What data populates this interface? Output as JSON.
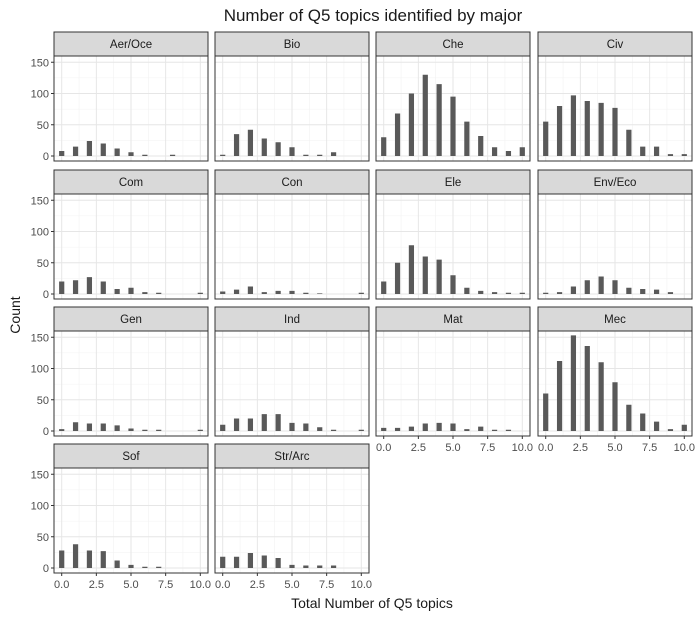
{
  "chart_data": {
    "type": "bar",
    "layout": "faceted small multiples (facet_wrap, 4 columns)",
    "title": "Number of Q5 topics identified by major",
    "xlabel": "Total Number of Q5 topics",
    "ylabel": "Count",
    "x": [
      0,
      1,
      2,
      3,
      4,
      5,
      6,
      7,
      8,
      9,
      10
    ],
    "xlim": [
      0,
      10
    ],
    "xticks": [
      "0.0",
      "2.5",
      "5.0",
      "7.5",
      "10.0"
    ],
    "ylim": [
      0,
      160
    ],
    "yticks": [
      "0",
      "50",
      "100",
      "150"
    ],
    "grid": true,
    "bar_color": "#595959",
    "strip_color": "#d9d9d9",
    "facets": [
      {
        "name": "Aer/Oce",
        "values": [
          8,
          15,
          24,
          20,
          12,
          6,
          2,
          0,
          2,
          0,
          0
        ]
      },
      {
        "name": "Bio",
        "values": [
          2,
          35,
          42,
          28,
          22,
          14,
          2,
          2,
          6,
          0,
          0
        ]
      },
      {
        "name": "Che",
        "values": [
          30,
          68,
          100,
          130,
          115,
          95,
          55,
          32,
          14,
          8,
          14
        ]
      },
      {
        "name": "Civ",
        "values": [
          55,
          80,
          97,
          88,
          85,
          77,
          42,
          15,
          15,
          3,
          3
        ]
      },
      {
        "name": "Com",
        "values": [
          20,
          22,
          27,
          20,
          8,
          10,
          3,
          2,
          0,
          0,
          2
        ]
      },
      {
        "name": "Con",
        "values": [
          4,
          7,
          12,
          3,
          5,
          5,
          2,
          1,
          0,
          0,
          2
        ]
      },
      {
        "name": "Ele",
        "values": [
          20,
          50,
          78,
          60,
          55,
          30,
          10,
          5,
          3,
          2,
          2
        ]
      },
      {
        "name": "Env/Eco",
        "values": [
          2,
          3,
          12,
          22,
          28,
          22,
          10,
          8,
          7,
          3,
          0
        ]
      },
      {
        "name": "Gen",
        "values": [
          3,
          14,
          12,
          12,
          9,
          4,
          2,
          2,
          0,
          0,
          2
        ]
      },
      {
        "name": "Ind",
        "values": [
          10,
          20,
          20,
          27,
          27,
          13,
          12,
          6,
          2,
          0,
          2
        ]
      },
      {
        "name": "Mat",
        "values": [
          5,
          5,
          7,
          12,
          13,
          12,
          3,
          7,
          2,
          2,
          0
        ]
      },
      {
        "name": "Mec",
        "values": [
          60,
          112,
          153,
          136,
          110,
          78,
          42,
          28,
          15,
          3,
          10
        ]
      },
      {
        "name": "Sof",
        "values": [
          28,
          38,
          28,
          27,
          12,
          5,
          2,
          2,
          0,
          0,
          0
        ]
      },
      {
        "name": "Str/Arc",
        "values": [
          18,
          18,
          24,
          20,
          16,
          5,
          4,
          4,
          4,
          0,
          0
        ]
      }
    ]
  }
}
